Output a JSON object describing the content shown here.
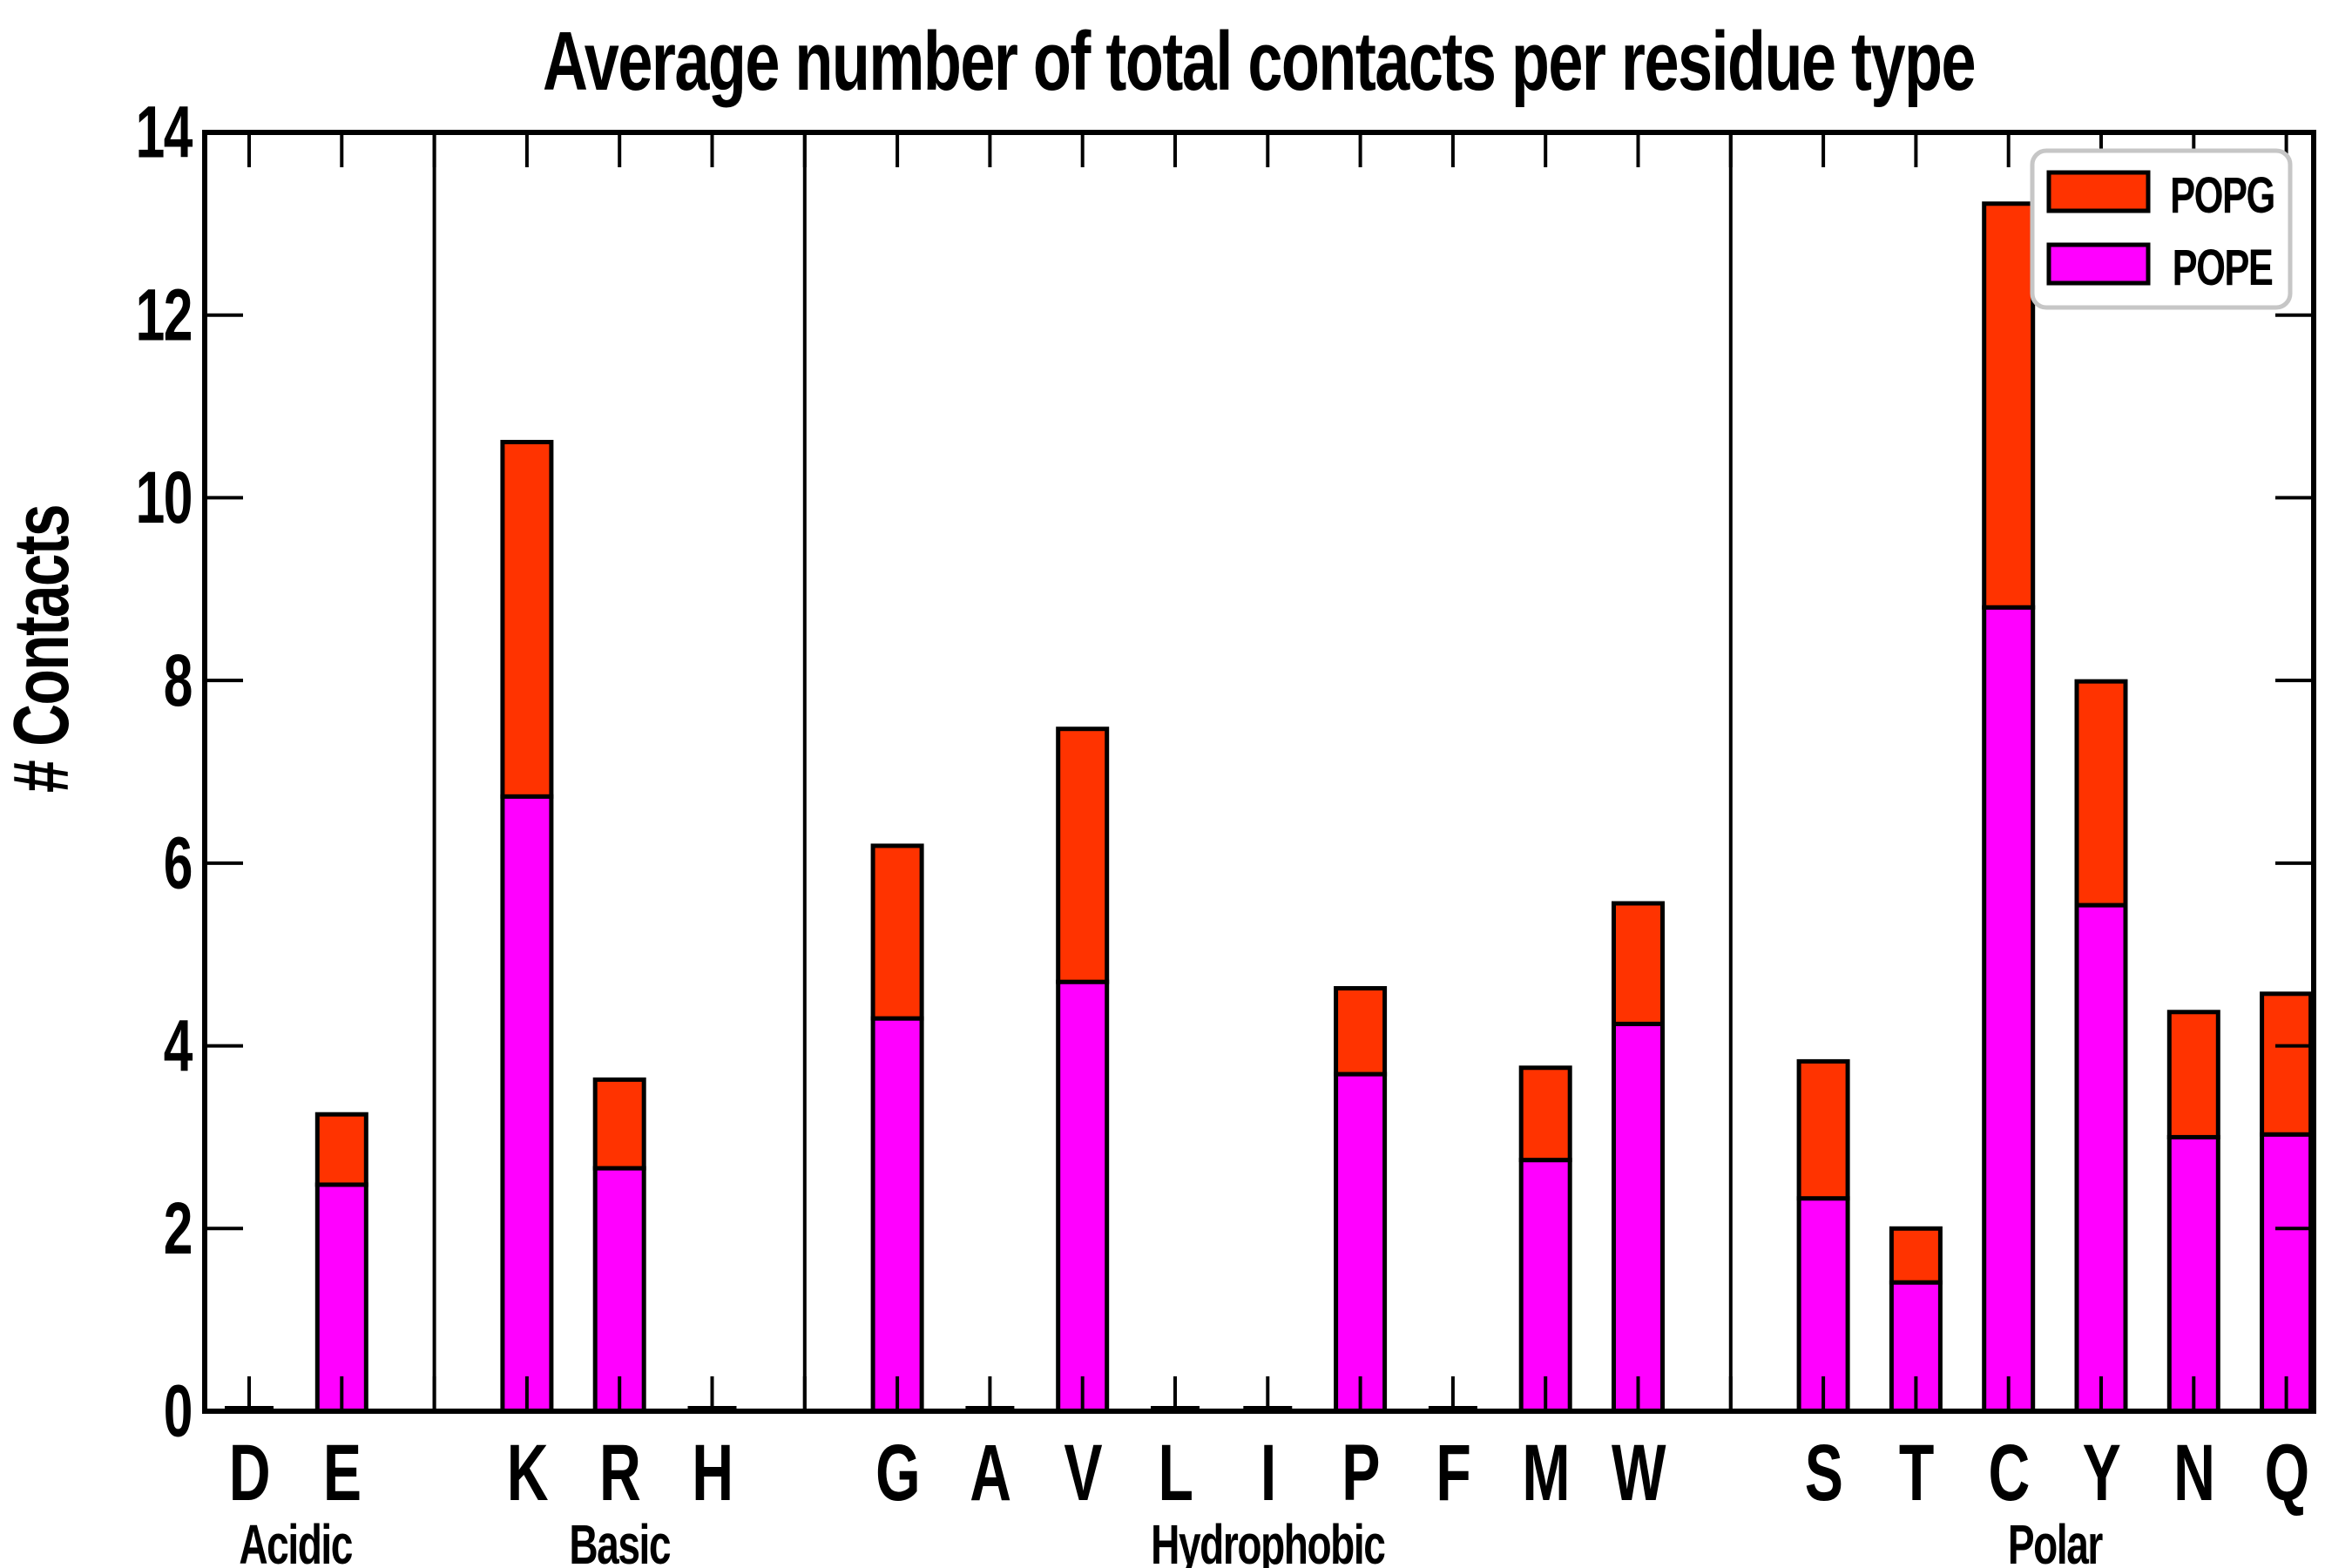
{
  "chart_data": {
    "type": "bar",
    "stacked": true,
    "title": "Average number of total contacts per residue type",
    "ylabel": "# Contacts",
    "xlabel": "",
    "ylim": [
      0,
      14
    ],
    "yticks": [
      0,
      2,
      4,
      6,
      8,
      10,
      12,
      14
    ],
    "grid": false,
    "legend": {
      "position": "upper right",
      "entries": [
        {
          "label": "POPG",
          "color": "#ff3300"
        },
        {
          "label": "POPE",
          "color": "#ff00ff"
        }
      ]
    },
    "colors": {
      "POPG": "#ff3300",
      "POPE": "#ff00ff"
    },
    "series_order_bottom_to_top": [
      "POPE",
      "POPG"
    ],
    "groups": [
      {
        "label": "Acidic",
        "categories": [
          "D",
          "E"
        ],
        "series": {
          "POPE": [
            0,
            2.48
          ],
          "POPG": [
            0,
            0.77
          ]
        }
      },
      {
        "label": "Basic",
        "categories": [
          "K",
          "R",
          "H"
        ],
        "series": {
          "POPE": [
            6.73,
            2.66,
            0
          ],
          "POPG": [
            3.88,
            0.97,
            0
          ]
        }
      },
      {
        "label": "Hydrophobic",
        "categories": [
          "G",
          "A",
          "V",
          "L",
          "I",
          "P",
          "F",
          "M",
          "W"
        ],
        "series": {
          "POPE": [
            4.3,
            0,
            4.7,
            0,
            0,
            3.69,
            0,
            2.75,
            4.24
          ],
          "POPG": [
            1.89,
            0,
            2.77,
            0,
            0,
            0.94,
            0,
            1.01,
            1.32
          ]
        }
      },
      {
        "label": "Polar",
        "categories": [
          "S",
          "T",
          "C",
          "Y",
          "N",
          "Q"
        ],
        "series": {
          "POPE": [
            2.33,
            1.41,
            8.8,
            5.54,
            3.0,
            3.03
          ],
          "POPG": [
            1.5,
            0.59,
            4.42,
            2.45,
            1.37,
            1.54
          ]
        }
      }
    ]
  }
}
